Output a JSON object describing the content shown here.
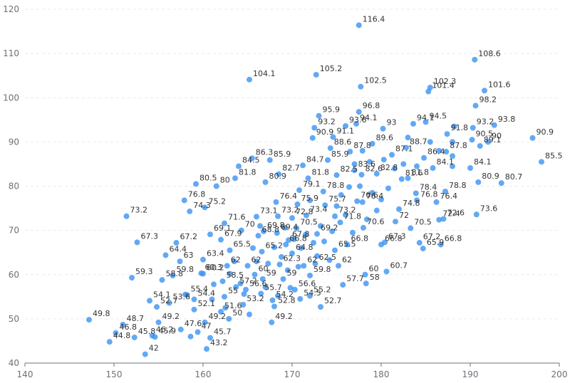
{
  "chart_data": {
    "type": "scatter",
    "title": "",
    "xlabel": "",
    "ylabel": "",
    "xlim": [
      140,
      200
    ],
    "ylim": [
      40,
      120
    ],
    "x_ticks": [
      "140",
      "150",
      "160",
      "170",
      "180",
      "190",
      "200"
    ],
    "y_ticks": [
      "40",
      "50",
      "60",
      "70",
      "80",
      "90",
      "100",
      "110",
      "120"
    ],
    "grid": true,
    "color": "#3b93f3",
    "points": [
      [
        147.2,
        49.8
      ],
      [
        149.5,
        44.8
      ],
      [
        150.2,
        46.8
      ],
      [
        151.0,
        48.7
      ],
      [
        151.4,
        73.2
      ],
      [
        152.0,
        59.3
      ],
      [
        152.3,
        45.8
      ],
      [
        152.6,
        67.3
      ],
      [
        153.5,
        42.0
      ],
      [
        154.0,
        54.1
      ],
      [
        154.3,
        46.2
      ],
      [
        154.6,
        45.9
      ],
      [
        154.8,
        52.7
      ],
      [
        155.0,
        49.2
      ],
      [
        155.4,
        58.8
      ],
      [
        155.8,
        64.4
      ],
      [
        156.2,
        53.6
      ],
      [
        156.6,
        59.8
      ],
      [
        157.0,
        67.2
      ],
      [
        157.4,
        63.0
      ],
      [
        157.5,
        47.6
      ],
      [
        157.9,
        76.8
      ],
      [
        158.2,
        55.4
      ],
      [
        158.5,
        74.3
      ],
      [
        158.6,
        46.0
      ],
      [
        159.0,
        52.1
      ],
      [
        159.0,
        54.4
      ],
      [
        159.2,
        80.5
      ],
      [
        159.4,
        47.0
      ],
      [
        159.8,
        60.3
      ],
      [
        160.0,
        60.2
      ],
      [
        160.0,
        63.4
      ],
      [
        160.2,
        75.2
      ],
      [
        160.2,
        49.2
      ],
      [
        160.4,
        43.2
      ],
      [
        160.8,
        45.7
      ],
      [
        160.8,
        69.1
      ],
      [
        161.0,
        54.4
      ],
      [
        161.5,
        80.0
      ],
      [
        162.0,
        51.6
      ],
      [
        162.0,
        67.9
      ],
      [
        162.2,
        58.5
      ],
      [
        162.4,
        71.6
      ],
      [
        162.4,
        55.0
      ],
      [
        162.7,
        62.0
      ],
      [
        162.9,
        50.0
      ],
      [
        163.0,
        65.5
      ],
      [
        163.6,
        81.8
      ],
      [
        163.7,
        57.2
      ],
      [
        164.0,
        84.5
      ],
      [
        164.3,
        70.0
      ],
      [
        164.5,
        53.2
      ],
      [
        164.8,
        56.6
      ],
      [
        165.0,
        62.0
      ],
      [
        165.2,
        104.1
      ],
      [
        165.5,
        86.3
      ],
      [
        165.8,
        60.0
      ],
      [
        166.0,
        73.1
      ],
      [
        166.2,
        68.8
      ],
      [
        166.5,
        55.7
      ],
      [
        166.6,
        65.2
      ],
      [
        166.7,
        59.0
      ],
      [
        166.8,
        69.8
      ],
      [
        167.0,
        80.9
      ],
      [
        167.5,
        85.9
      ],
      [
        167.7,
        49.2
      ],
      [
        167.8,
        54.2
      ],
      [
        168.0,
        52.8
      ],
      [
        168.2,
        76.4
      ],
      [
        168.3,
        69.4
      ],
      [
        168.4,
        73.2
      ],
      [
        168.5,
        82.7
      ],
      [
        168.6,
        62.3
      ],
      [
        169.0,
        59.0
      ],
      [
        169.3,
        66.8
      ],
      [
        169.6,
        67.8
      ],
      [
        170.0,
        72.8
      ],
      [
        170.0,
        64.8
      ],
      [
        170.3,
        56.6
      ],
      [
        170.5,
        70.5
      ],
      [
        170.6,
        75.9
      ],
      [
        170.8,
        79.1
      ],
      [
        170.9,
        54.5
      ],
      [
        171.2,
        84.7
      ],
      [
        171.3,
        62.0
      ],
      [
        171.6,
        73.4
      ],
      [
        171.8,
        81.8
      ],
      [
        172.0,
        55.2
      ],
      [
        172.0,
        59.8
      ],
      [
        172.3,
        90.9
      ],
      [
        172.5,
        93.2
      ],
      [
        172.6,
        62.5
      ],
      [
        172.7,
        105.2
      ],
      [
        172.8,
        69.2
      ],
      [
        173.0,
        95.9
      ],
      [
        173.2,
        52.7
      ],
      [
        173.5,
        78.8
      ],
      [
        173.7,
        75.7
      ],
      [
        174.0,
        85.9
      ],
      [
        174.3,
        88.6
      ],
      [
        174.6,
        91.1
      ],
      [
        174.8,
        65.5
      ],
      [
        174.8,
        73.2
      ],
      [
        175.0,
        82.5
      ],
      [
        175.2,
        62.0
      ],
      [
        175.4,
        71.8
      ],
      [
        175.7,
        57.7
      ],
      [
        176.0,
        93.6
      ],
      [
        176.2,
        66.8
      ],
      [
        176.5,
        87.8
      ],
      [
        177.0,
        83.6
      ],
      [
        177.2,
        94.1
      ],
      [
        177.3,
        76.6
      ],
      [
        177.5,
        96.8
      ],
      [
        177.5,
        116.4
      ],
      [
        177.7,
        102.5
      ],
      [
        177.8,
        82.6
      ],
      [
        177.9,
        76.4
      ],
      [
        178.0,
        70.6
      ],
      [
        178.2,
        60.0
      ],
      [
        178.3,
        58.0
      ],
      [
        179.0,
        89.6
      ],
      [
        179.5,
        82.8
      ],
      [
        180.0,
        66.8
      ],
      [
        180.2,
        93.0
      ],
      [
        180.4,
        67.3
      ],
      [
        180.6,
        60.7
      ],
      [
        181.2,
        87.1
      ],
      [
        181.6,
        72.0
      ],
      [
        182.0,
        74.8
      ],
      [
        182.3,
        81.6
      ],
      [
        182.8,
        88.7
      ],
      [
        183.0,
        81.8
      ],
      [
        183.3,
        70.5
      ],
      [
        183.6,
        94.1
      ],
      [
        183.9,
        78.4
      ],
      [
        184.0,
        76.8
      ],
      [
        184.3,
        67.2
      ],
      [
        184.7,
        65.9
      ],
      [
        184.8,
        86.4
      ],
      [
        185.0,
        94.5
      ],
      [
        185.3,
        101.4
      ],
      [
        185.5,
        102.3
      ],
      [
        185.8,
        84.1
      ],
      [
        186.2,
        76.4
      ],
      [
        186.5,
        72.4
      ],
      [
        186.7,
        66.8
      ],
      [
        187.0,
        72.6
      ],
      [
        187.2,
        78.8
      ],
      [
        187.3,
        87.8
      ],
      [
        187.4,
        91.8
      ],
      [
        190.0,
        84.1
      ],
      [
        190.2,
        90.5
      ],
      [
        190.3,
        93.2
      ],
      [
        190.5,
        108.6
      ],
      [
        190.6,
        98.2
      ],
      [
        190.7,
        73.6
      ],
      [
        190.9,
        80.9
      ],
      [
        191.1,
        89.1
      ],
      [
        191.6,
        101.6
      ],
      [
        192.0,
        90.0
      ],
      [
        192.7,
        93.8
      ],
      [
        193.5,
        80.7
      ],
      [
        197.0,
        90.9
      ],
      [
        198.0,
        85.5
      ]
    ],
    "point_labels": [
      "49.8",
      "44.8",
      "46.8",
      "48.7",
      "73.2",
      "59.3",
      "45.8",
      "67.3",
      "42",
      "54.1",
      "46.2",
      "45.9",
      "52.7",
      "49.2",
      "58.8",
      "64.4",
      "53.6",
      "59.8",
      "67.2",
      "63",
      "47.6",
      "76.8",
      "55.4",
      "74.3",
      "",
      "52.1",
      "54.4",
      "80.5",
      "47",
      "60.3",
      "60.2",
      "63.4",
      "75.2",
      "49.2",
      "43.2",
      "45.7",
      "69.1",
      "",
      "80",
      "51.6",
      "67.9",
      "58.5",
      "71.6",
      "55",
      "62",
      "50",
      "65.5",
      "81.8",
      "57.2",
      "84.5",
      "70",
      "53.2",
      "56.6",
      "62",
      "104.1",
      "86.3",
      "60",
      "73.1",
      "68.8",
      "55.7",
      "65.2",
      "59",
      "69.8",
      "80.9",
      "85.9",
      "49.2",
      "54.2",
      "52.8",
      "76.4",
      "69.4",
      "73.2",
      "82.7",
      "62.3",
      "59",
      "66.8",
      "67.8",
      "72.8",
      "64.8",
      "56.6",
      "70.5",
      "75.9",
      "79.1",
      "54.5",
      "84.7",
      "62",
      "73.4",
      "81.8",
      "55.2",
      "59.8",
      "90.9",
      "93.2",
      "62.5",
      "105.2",
      "69.2",
      "95.9",
      "52.7",
      "78.8",
      "75.7",
      "85.9",
      "88.6",
      "91.1",
      "65.5",
      "73.2",
      "82.5",
      "62",
      "71.8",
      "57.7",
      "93.6",
      "66.8",
      "87.8",
      "83.6",
      "94.1",
      "76.6",
      "96.8",
      "116.4",
      "102.5",
      "82.6",
      "76.4",
      "70.6",
      "60",
      "58",
      "89.6",
      "82.8",
      "66.8",
      "93",
      "67.3",
      "60.7",
      "87.1",
      "72",
      "74.8",
      "81.6",
      "88.7",
      "81.8",
      "70.5",
      "94.1",
      "78.4",
      "76.8",
      "67.2",
      "65.9",
      "86.4",
      "94.5",
      "101.4",
      "102.3",
      "84.1",
      "76.4",
      "72.4",
      "66.8",
      "72.6",
      "78.8",
      "87.8",
      "91.8",
      "84.1",
      "90.5",
      "93.2",
      "108.6",
      "98.2",
      "73.6",
      "80.9",
      "89.1",
      "101.6",
      "90",
      "93.8",
      "80.7",
      "90.9",
      "85.5"
    ],
    "extra_points": [
      [
        158.0,
        55.5
      ],
      [
        161.2,
        57.8
      ],
      [
        162.5,
        52.5
      ],
      [
        163.0,
        60.2
      ],
      [
        163.5,
        63.0
      ],
      [
        164.2,
        58.0
      ],
      [
        164.6,
        55.6
      ],
      [
        165.2,
        51.0
      ],
      [
        165.6,
        66.0
      ],
      [
        166.0,
        63.0
      ],
      [
        166.4,
        71.0
      ],
      [
        167.0,
        57.2
      ],
      [
        167.3,
        62.5
      ],
      [
        168.0,
        66.2
      ],
      [
        168.4,
        55.2
      ],
      [
        168.8,
        64.0
      ],
      [
        169.2,
        70.6
      ],
      [
        169.5,
        61.0
      ],
      [
        169.8,
        57.0
      ],
      [
        170.2,
        68.0
      ],
      [
        170.7,
        61.8
      ],
      [
        171.0,
        66.0
      ],
      [
        171.5,
        69.0
      ],
      [
        172.0,
        76.8
      ],
      [
        172.4,
        67.2
      ],
      [
        172.8,
        64.2
      ],
      [
        173.2,
        71.0
      ],
      [
        173.6,
        67.5
      ],
      [
        174.2,
        63.3
      ],
      [
        174.5,
        69.8
      ],
      [
        175.0,
        75.5
      ],
      [
        175.5,
        78.0
      ],
      [
        176.0,
        73.5
      ],
      [
        176.4,
        79.8
      ],
      [
        176.8,
        69.5
      ],
      [
        177.0,
        85.0
      ],
      [
        177.6,
        80.0
      ],
      [
        177.9,
        88.0
      ],
      [
        178.4,
        72.5
      ],
      [
        178.7,
        85.5
      ],
      [
        179.0,
        78.5
      ],
      [
        179.5,
        74.5
      ],
      [
        180.0,
        77.0
      ],
      [
        180.3,
        86.0
      ],
      [
        180.8,
        79.5
      ],
      [
        181.5,
        84.0
      ],
      [
        182.5,
        85.0
      ],
      [
        183.0,
        91.0
      ],
      [
        184.0,
        84.5
      ],
      [
        185.5,
        90.0
      ],
      [
        186.5,
        88.0
      ],
      [
        188.0,
        84.5
      ],
      [
        188.0,
        86.8
      ],
      [
        188.0,
        90.0
      ],
      [
        188.2,
        93.5
      ]
    ]
  }
}
